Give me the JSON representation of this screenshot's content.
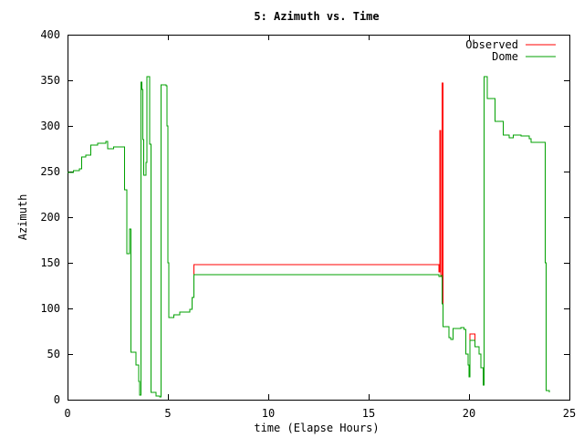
{
  "chart_data": {
    "type": "line",
    "title": "5: Azimuth vs. Time",
    "xlabel": "time (Elapse Hours)",
    "ylabel": "Azimuth",
    "xlim": [
      0,
      25
    ],
    "ylim": [
      0,
      400
    ],
    "xticks": [
      0,
      5,
      10,
      15,
      20,
      25
    ],
    "yticks": [
      0,
      50,
      100,
      150,
      200,
      250,
      300,
      350,
      400
    ],
    "grid": false,
    "legend_position": "top-right",
    "series": [
      {
        "name": "Observed",
        "color": "#ff0000",
        "points": [
          [
            0.0,
            249
          ],
          [
            0.3,
            251
          ],
          [
            0.6,
            253
          ],
          [
            0.7,
            266
          ],
          [
            0.9,
            268
          ],
          [
            1.1,
            268
          ],
          [
            1.15,
            279
          ],
          [
            1.5,
            281
          ],
          [
            1.9,
            283
          ],
          [
            2.0,
            275
          ],
          [
            2.3,
            277
          ],
          [
            2.8,
            277
          ],
          [
            2.85,
            230
          ],
          [
            2.95,
            160
          ],
          [
            3.1,
            187
          ],
          [
            3.15,
            52
          ],
          [
            3.4,
            38
          ],
          [
            3.55,
            20
          ],
          [
            3.6,
            5
          ],
          [
            3.65,
            348
          ],
          [
            3.7,
            340
          ],
          [
            3.75,
            285
          ],
          [
            3.8,
            246
          ],
          [
            3.9,
            260
          ],
          [
            3.95,
            354
          ],
          [
            4.05,
            354
          ],
          [
            4.1,
            280
          ],
          [
            4.15,
            8
          ],
          [
            4.4,
            4
          ],
          [
            4.6,
            3
          ],
          [
            4.65,
            345
          ],
          [
            4.9,
            344
          ],
          [
            4.95,
            300
          ],
          [
            5.0,
            150
          ],
          [
            5.05,
            90
          ],
          [
            5.3,
            93
          ],
          [
            5.6,
            96
          ],
          [
            6.1,
            99
          ],
          [
            6.2,
            112
          ],
          [
            6.3,
            148
          ],
          [
            18.45,
            148
          ],
          [
            18.5,
            140
          ],
          [
            18.55,
            295
          ],
          [
            18.6,
            135
          ],
          [
            18.65,
            347
          ],
          [
            18.7,
            80
          ],
          [
            19.0,
            68
          ],
          [
            19.1,
            66
          ],
          [
            19.2,
            78
          ],
          [
            19.6,
            79
          ],
          [
            19.75,
            77
          ],
          [
            19.85,
            50
          ],
          [
            19.95,
            38
          ],
          [
            20.05,
            72
          ],
          [
            20.3,
            58
          ],
          [
            20.5,
            50
          ],
          [
            20.6,
            35
          ],
          [
            20.7,
            16
          ],
          [
            20.75,
            354
          ],
          [
            20.9,
            330
          ],
          [
            21.3,
            305
          ],
          [
            21.7,
            290
          ],
          [
            22.0,
            287
          ],
          [
            22.2,
            290
          ],
          [
            22.6,
            289
          ],
          [
            23.0,
            286
          ],
          [
            23.1,
            282
          ],
          [
            23.7,
            282
          ],
          [
            23.8,
            150
          ],
          [
            23.85,
            10
          ],
          [
            24.0,
            8
          ]
        ]
      },
      {
        "name": "Dome",
        "color": "#00a000",
        "points": [
          [
            0.0,
            249
          ],
          [
            0.3,
            251
          ],
          [
            0.6,
            253
          ],
          [
            0.7,
            266
          ],
          [
            0.9,
            268
          ],
          [
            1.1,
            268
          ],
          [
            1.15,
            279
          ],
          [
            1.5,
            281
          ],
          [
            1.9,
            283
          ],
          [
            2.0,
            275
          ],
          [
            2.3,
            277
          ],
          [
            2.8,
            277
          ],
          [
            2.85,
            230
          ],
          [
            2.95,
            160
          ],
          [
            3.1,
            187
          ],
          [
            3.15,
            52
          ],
          [
            3.4,
            38
          ],
          [
            3.55,
            20
          ],
          [
            3.6,
            5
          ],
          [
            3.65,
            348
          ],
          [
            3.7,
            340
          ],
          [
            3.75,
            285
          ],
          [
            3.8,
            246
          ],
          [
            3.9,
            260
          ],
          [
            3.95,
            354
          ],
          [
            4.05,
            354
          ],
          [
            4.1,
            280
          ],
          [
            4.15,
            8
          ],
          [
            4.4,
            4
          ],
          [
            4.6,
            3
          ],
          [
            4.65,
            345
          ],
          [
            4.9,
            344
          ],
          [
            4.95,
            300
          ],
          [
            5.0,
            150
          ],
          [
            5.05,
            90
          ],
          [
            5.3,
            93
          ],
          [
            5.6,
            96
          ],
          [
            6.1,
            99
          ],
          [
            6.2,
            112
          ],
          [
            6.3,
            137
          ],
          [
            18.45,
            137
          ],
          [
            18.5,
            135
          ],
          [
            18.6,
            136
          ],
          [
            18.65,
            105
          ],
          [
            18.7,
            80
          ],
          [
            19.0,
            68
          ],
          [
            19.1,
            66
          ],
          [
            19.2,
            78
          ],
          [
            19.6,
            79
          ],
          [
            19.75,
            77
          ],
          [
            19.85,
            50
          ],
          [
            19.95,
            38
          ],
          [
            20.0,
            25
          ],
          [
            20.05,
            65
          ],
          [
            20.3,
            58
          ],
          [
            20.5,
            50
          ],
          [
            20.6,
            35
          ],
          [
            20.7,
            16
          ],
          [
            20.75,
            354
          ],
          [
            20.9,
            330
          ],
          [
            21.3,
            305
          ],
          [
            21.7,
            290
          ],
          [
            22.0,
            287
          ],
          [
            22.2,
            290
          ],
          [
            22.6,
            289
          ],
          [
            23.0,
            286
          ],
          [
            23.1,
            282
          ],
          [
            23.7,
            282
          ],
          [
            23.8,
            150
          ],
          [
            23.85,
            10
          ],
          [
            24.0,
            8
          ]
        ]
      }
    ]
  }
}
